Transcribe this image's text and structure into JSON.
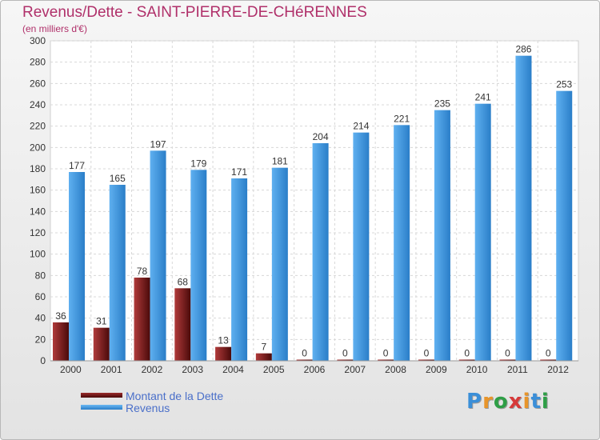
{
  "chart_data": {
    "type": "bar",
    "title": "Revenus/Dette - SAINT-PIERRE-DE-CHéRENNES",
    "subtitle": "(en milliers d'€)",
    "xlabel": "",
    "ylabel": "",
    "ylim": [
      0,
      300
    ],
    "yticks": [
      0,
      20,
      40,
      60,
      80,
      100,
      120,
      140,
      160,
      180,
      200,
      220,
      240,
      260,
      280,
      300
    ],
    "grid": true,
    "categories": [
      "2000",
      "2001",
      "2002",
      "2003",
      "2004",
      "2005",
      "2006",
      "2007",
      "2008",
      "2009",
      "2010",
      "2011",
      "2012"
    ],
    "series": [
      {
        "name": "Montant de la Dette",
        "color": "#7a1a1a",
        "values": [
          36,
          31,
          78,
          68,
          13,
          7,
          0,
          0,
          0,
          0,
          0,
          0,
          0
        ]
      },
      {
        "name": "Revenus",
        "color": "#3f97e0",
        "values": [
          177,
          165,
          197,
          179,
          171,
          181,
          204,
          214,
          221,
          235,
          241,
          286,
          253
        ]
      }
    ],
    "legend_position": "bottom-left"
  },
  "logo": {
    "letters": [
      "P",
      "r",
      "o",
      "x",
      "i",
      "t",
      "i"
    ],
    "colors": [
      "#3b8fd8",
      "#e8952a",
      "#2e9e46",
      "#d63a3a",
      "#e8952a",
      "#3b8fd8",
      "#2e9e46"
    ]
  }
}
